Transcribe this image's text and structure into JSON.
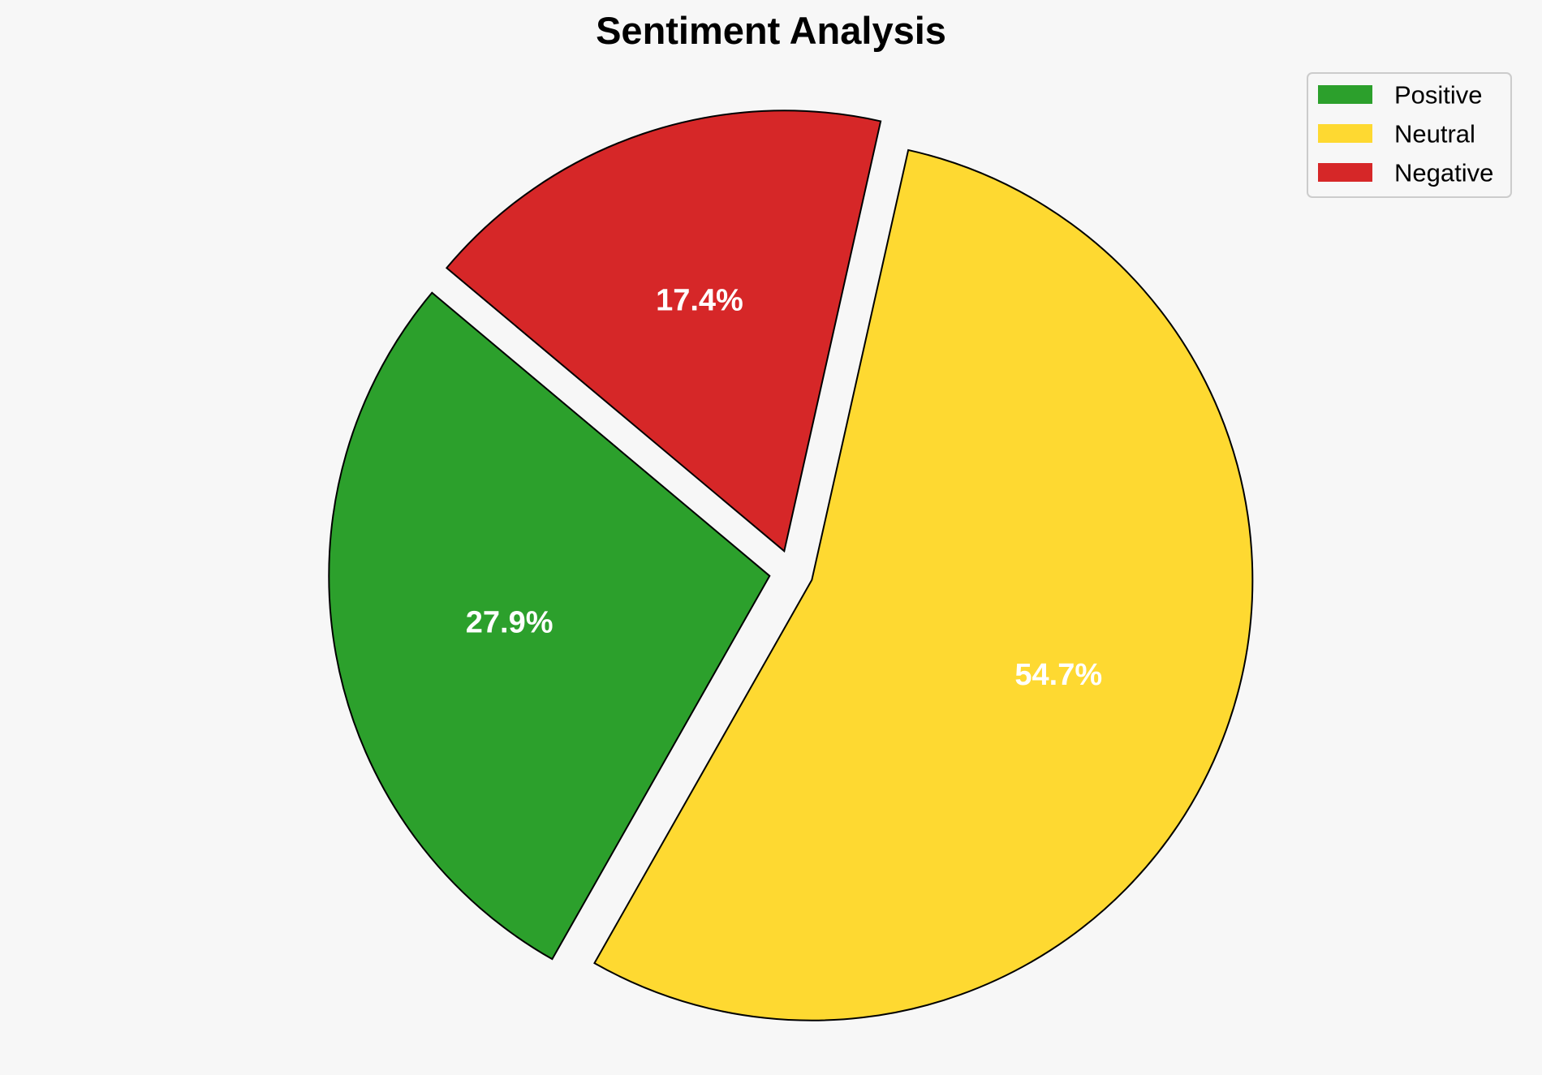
{
  "chart_data": {
    "type": "pie",
    "title": "Sentiment Analysis",
    "categories": [
      "Positive",
      "Neutral",
      "Negative"
    ],
    "values": [
      27.9,
      54.7,
      17.4
    ],
    "labels": [
      "27.9%",
      "54.7%",
      "17.4%"
    ],
    "colors": [
      "#2ca02c",
      "#fed931",
      "#d62728"
    ],
    "edge_color": "#000000",
    "exploded": true,
    "start_angle_deg": 140,
    "direction": "counterclockwise",
    "legend_position": "top-right"
  }
}
